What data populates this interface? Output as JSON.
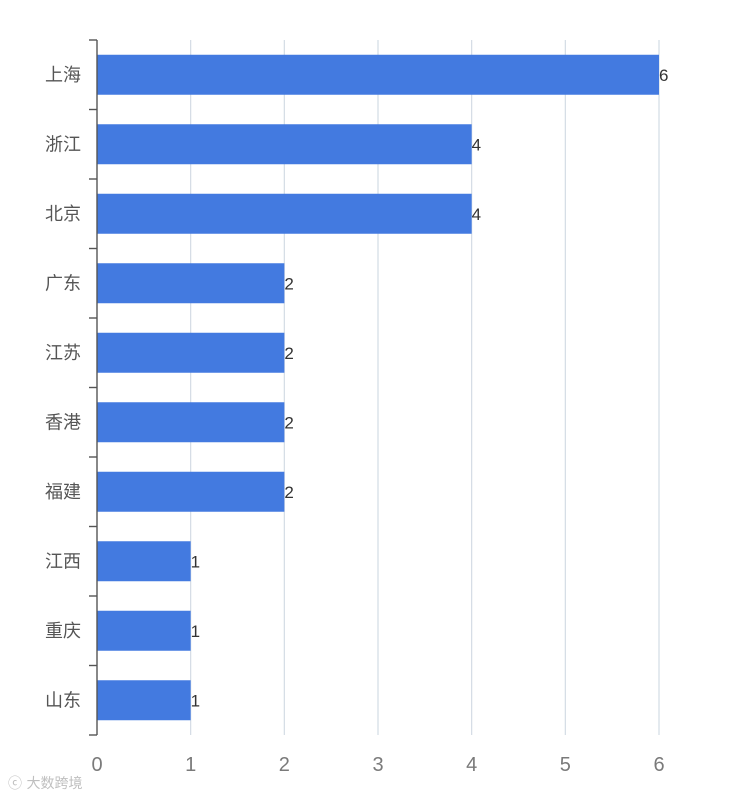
{
  "chart_data": {
    "type": "bar",
    "orientation": "horizontal",
    "categories": [
      "上海",
      "浙江",
      "北京",
      "广东",
      "江苏",
      "香港",
      "福建",
      "江西",
      "重庆",
      "山东"
    ],
    "values": [
      6,
      4,
      4,
      2,
      2,
      2,
      2,
      1,
      1,
      1
    ],
    "xlim": [
      0,
      6
    ],
    "xticks": [
      0,
      1,
      2,
      3,
      4,
      5,
      6
    ],
    "grid": true,
    "data_labels": true,
    "title": "",
    "xlabel": "",
    "ylabel": "",
    "colors": {
      "bar": "#437ae0",
      "grid": "#d3dbe4",
      "axis": "#555555"
    }
  },
  "watermark": {
    "text": "大数跨境"
  }
}
